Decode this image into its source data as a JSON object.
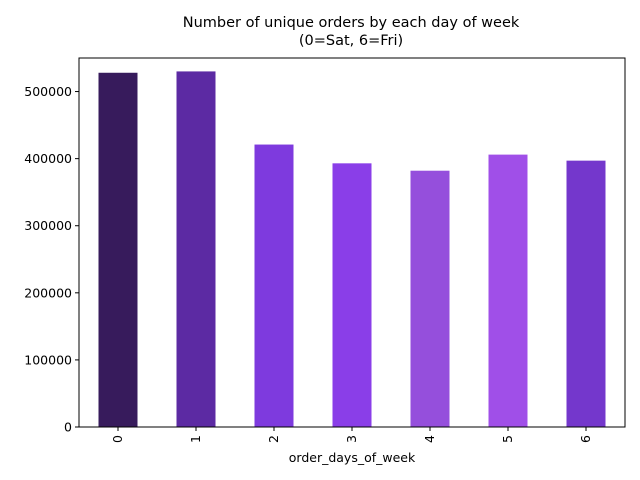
{
  "chart_data": {
    "type": "bar",
    "title": "Number of unique orders by each day of week",
    "subtitle": "(0=Sat, 6=Fri)",
    "xlabel": "order_days_of_week",
    "ylabel": "",
    "categories": [
      "0",
      "1",
      "2",
      "3",
      "4",
      "5",
      "6"
    ],
    "values": [
      528000,
      530000,
      421000,
      393000,
      382000,
      406000,
      397000
    ],
    "colors": [
      "#371b5c",
      "#5c2aa3",
      "#7e3ade",
      "#8a3ee8",
      "#954fdc",
      "#a04fe8",
      "#7437cc"
    ],
    "ylim": [
      0,
      550000
    ],
    "yticks": [
      0,
      100000,
      200000,
      300000,
      400000,
      500000
    ],
    "ytick_labels": [
      "0",
      "100000",
      "200000",
      "300000",
      "400000",
      "500000"
    ],
    "xtick_rotation": "vertical",
    "grid": false,
    "legend": "none"
  }
}
